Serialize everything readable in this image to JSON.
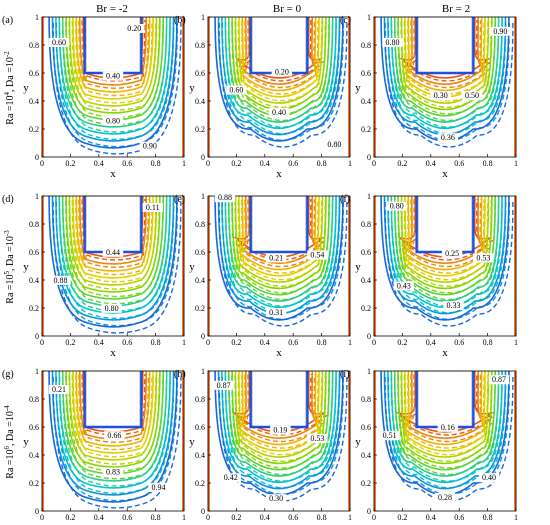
{
  "figure": {
    "columns": [
      "Br = -2",
      "Br = 0",
      "Br = 2"
    ],
    "rows": [
      {
        "base": "Ra =10",
        "base_sup": "4",
        "sep": ", Da =10",
        "sep_sup": "-2"
      },
      {
        "base": "Ra =10",
        "base_sup": "5",
        "sep": ", Da =10",
        "sep_sup": "-3"
      },
      {
        "base": "Ra =10",
        "base_sup": "6",
        "sep": ", Da =10",
        "sep_sup": "-4"
      }
    ]
  },
  "chart_data": [
    {
      "panel": "(a)",
      "type": "contour",
      "xlabel": "x",
      "ylabel": "y",
      "xlim": [
        0,
        1
      ],
      "ylim": [
        0,
        1
      ],
      "xticks": [
        "0",
        "0.2",
        "0.4",
        "0.6",
        "0.8",
        "1"
      ],
      "yticks": [
        "0",
        "0.2",
        "0.4",
        "0.6",
        "0.8",
        "1"
      ],
      "contour_labels": [
        {
          "text": "0.20",
          "x": 0.65,
          "y": 0.9
        },
        {
          "text": "0.60",
          "x": 0.12,
          "y": 0.8
        },
        {
          "text": "0.40",
          "x": 0.5,
          "y": 0.56
        },
        {
          "text": "0.80",
          "x": 0.5,
          "y": 0.24
        },
        {
          "text": "0.90",
          "x": 0.76,
          "y": 0.06
        }
      ]
    },
    {
      "panel": "(b)",
      "type": "contour",
      "xlabel": "x",
      "ylabel": "y",
      "xlim": [
        0,
        1
      ],
      "ylim": [
        0,
        1
      ],
      "xticks": [
        "0",
        "0.2",
        "0.4",
        "0.6",
        "0.8",
        "1"
      ],
      "yticks": [
        "0",
        "0.2",
        "0.4",
        "0.6",
        "0.8",
        "1"
      ],
      "contour_labels": [
        {
          "text": "0.20",
          "x": 0.52,
          "y": 0.59
        },
        {
          "text": "0.60",
          "x": 0.2,
          "y": 0.46
        },
        {
          "text": "0.40",
          "x": 0.5,
          "y": 0.3
        },
        {
          "text": "0.80",
          "x": 0.89,
          "y": 0.07
        }
      ]
    },
    {
      "panel": "(c)",
      "type": "contour",
      "xlabel": "x",
      "ylabel": "y",
      "xlim": [
        0,
        1
      ],
      "ylim": [
        0,
        1
      ],
      "xticks": [
        "0",
        "0.2",
        "0.4",
        "0.6",
        "0.8",
        "1"
      ],
      "yticks": [
        "0",
        "0.2",
        "0.4",
        "0.6",
        "0.8",
        "1"
      ],
      "contour_labels": [
        {
          "text": "0.80",
          "x": 0.13,
          "y": 0.8
        },
        {
          "text": "0.90",
          "x": 0.89,
          "y": 0.88
        },
        {
          "text": "0.30",
          "x": 0.47,
          "y": 0.42
        },
        {
          "text": "0.50",
          "x": 0.69,
          "y": 0.42
        },
        {
          "text": "0.36",
          "x": 0.52,
          "y": 0.12
        }
      ]
    },
    {
      "panel": "(d)",
      "type": "contour",
      "xlabel": "x",
      "ylabel": "y",
      "xlim": [
        0,
        1
      ],
      "ylim": [
        0,
        1
      ],
      "xticks": [
        "0",
        "0.2",
        "0.4",
        "0.6",
        "0.8",
        "1"
      ],
      "yticks": [
        "0",
        "0.2",
        "0.4",
        "0.6",
        "0.8",
        "1"
      ],
      "contour_labels": [
        {
          "text": "0.11",
          "x": 0.78,
          "y": 0.9
        },
        {
          "text": "0.44",
          "x": 0.5,
          "y": 0.58
        },
        {
          "text": "0.88",
          "x": 0.13,
          "y": 0.38
        },
        {
          "text": "0.80",
          "x": 0.49,
          "y": 0.18
        }
      ]
    },
    {
      "panel": "(e)",
      "type": "contour",
      "xlabel": "x",
      "ylabel": "y",
      "xlim": [
        0,
        1
      ],
      "ylim": [
        0,
        1
      ],
      "xticks": [
        "0",
        "0.2",
        "0.4",
        "0.6",
        "0.8",
        "1"
      ],
      "yticks": [
        "0",
        "0.2",
        "0.4",
        "0.6",
        "0.8",
        "1"
      ],
      "contour_labels": [
        {
          "text": "0.88",
          "x": 0.12,
          "y": 0.97
        },
        {
          "text": "0.21",
          "x": 0.48,
          "y": 0.54
        },
        {
          "text": "0.54",
          "x": 0.77,
          "y": 0.56
        },
        {
          "text": "0.31",
          "x": 0.48,
          "y": 0.15
        }
      ]
    },
    {
      "panel": "(f)",
      "type": "contour",
      "xlabel": "x",
      "ylabel": "y",
      "xlim": [
        0,
        1
      ],
      "ylim": [
        0,
        1
      ],
      "xticks": [
        "0",
        "0.2",
        "0.4",
        "0.6",
        "0.8",
        "1"
      ],
      "yticks": [
        "0",
        "0.2",
        "0.4",
        "0.6",
        "0.8",
        "1"
      ],
      "contour_labels": [
        {
          "text": "0.80",
          "x": 0.16,
          "y": 0.91
        },
        {
          "text": "0.25",
          "x": 0.55,
          "y": 0.57
        },
        {
          "text": "0.53",
          "x": 0.77,
          "y": 0.54
        },
        {
          "text": "0.43",
          "x": 0.21,
          "y": 0.34
        },
        {
          "text": "0.33",
          "x": 0.56,
          "y": 0.2
        }
      ]
    },
    {
      "panel": "(g)",
      "type": "contour",
      "xlabel": "x",
      "ylabel": "y",
      "xlim": [
        0,
        1
      ],
      "ylim": [
        0,
        1
      ],
      "xticks": [
        "0",
        "0.2",
        "0.4",
        "0.6",
        "0.8",
        "1"
      ],
      "yticks": [
        "0",
        "0.2",
        "0.4",
        "0.6",
        "0.8",
        "1"
      ],
      "contour_labels": [
        {
          "text": "0.21",
          "x": 0.12,
          "y": 0.85
        },
        {
          "text": "0.66",
          "x": 0.51,
          "y": 0.52
        },
        {
          "text": "0.83",
          "x": 0.5,
          "y": 0.26
        },
        {
          "text": "0.94",
          "x": 0.82,
          "y": 0.15
        }
      ]
    },
    {
      "panel": "(h)",
      "type": "contour",
      "xlabel": "x",
      "ylabel": "y",
      "xlim": [
        0,
        1
      ],
      "ylim": [
        0,
        1
      ],
      "xticks": [
        "0",
        "0.2",
        "0.4",
        "0.6",
        "0.8",
        "1"
      ],
      "yticks": [
        "0",
        "0.2",
        "0.4",
        "0.6",
        "0.8",
        "1"
      ],
      "contour_labels": [
        {
          "text": "0.87",
          "x": 0.11,
          "y": 0.88
        },
        {
          "text": "0.19",
          "x": 0.51,
          "y": 0.56
        },
        {
          "text": "0.53",
          "x": 0.77,
          "y": 0.5
        },
        {
          "text": "0.42",
          "x": 0.16,
          "y": 0.22
        },
        {
          "text": "0.30",
          "x": 0.48,
          "y": 0.07
        }
      ]
    },
    {
      "panel": "(i)",
      "type": "contour",
      "xlabel": "x",
      "ylabel": "y",
      "xlim": [
        0,
        1
      ],
      "ylim": [
        0,
        1
      ],
      "xticks": [
        "0",
        "0.2",
        "0.4",
        "0.6",
        "0.8",
        "1"
      ],
      "yticks": [
        "0",
        "0.2",
        "0.4",
        "0.6",
        "0.8",
        "1"
      ],
      "contour_labels": [
        {
          "text": "0.87",
          "x": 0.88,
          "y": 0.92
        },
        {
          "text": "0.16",
          "x": 0.52,
          "y": 0.58
        },
        {
          "text": "0.51",
          "x": 0.11,
          "y": 0.52
        },
        {
          "text": "0.40",
          "x": 0.81,
          "y": 0.22
        },
        {
          "text": "0.28",
          "x": 0.5,
          "y": 0.08
        }
      ]
    }
  ],
  "colors": {
    "low": "#1f4fe0",
    "mid_low": "#00c8d8",
    "mid": "#7ad800",
    "mid_high": "#f0d000",
    "high": "#e85a10",
    "frame": "#000000"
  }
}
